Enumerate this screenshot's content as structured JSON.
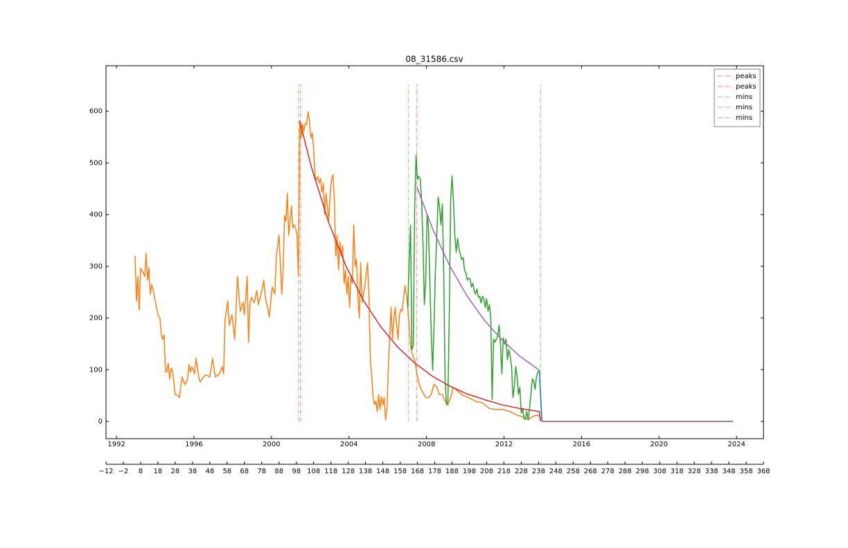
{
  "chart_data": {
    "type": "line",
    "title": "08_31586.csv",
    "xlim": [
      -12,
      368
    ],
    "xticks": [
      {
        "value": -12,
        "label": "−12"
      },
      {
        "value": -2,
        "label": "−2"
      },
      8,
      18,
      28,
      38,
      48,
      58,
      68,
      78,
      88,
      98,
      108,
      118,
      128,
      138,
      148,
      158,
      168,
      178,
      188,
      198,
      208,
      218,
      228,
      238,
      248,
      258,
      268,
      278,
      288,
      298,
      308,
      318,
      328,
      338,
      348,
      358,
      368
    ],
    "x2lim": [
      1991.46,
      2025.39
    ],
    "x2ticks": [
      1992,
      1996,
      2000,
      2004,
      2008,
      2012,
      2016,
      2020,
      2024
    ],
    "ylim": [
      -33.5,
      688
    ],
    "yticks": [
      0,
      100,
      200,
      300,
      400,
      500,
      600
    ],
    "series": [
      {
        "color": "#1f77b4",
        "x": [
          238.4,
          240.0
        ],
        "values": [
          99,
          0
        ]
      },
      {
        "color": "#ff7f0e",
        "x": [
          4.8,
          5.6,
          6.4,
          7.2,
          8.0,
          9.6,
          10.4,
          11.2,
          12.0,
          12.8,
          13.6,
          14.4,
          15.2,
          16.8,
          18.4,
          19.2,
          20.0,
          20.8,
          21.6,
          22.4,
          23.2,
          24.0,
          24.8,
          25.6,
          26.4,
          28.0,
          29.6,
          30.4,
          32.0,
          33.6,
          35.2,
          36.0,
          36.8,
          37.6,
          39.2,
          40.0,
          40.8,
          41.6,
          42.4,
          44.0,
          45.6,
          48.0,
          49.6,
          51.2,
          53.6,
          55.2,
          56.0,
          56.8,
          58.4,
          59.2,
          60.8,
          62.4,
          64.0,
          65.6,
          67.2,
          68.0,
          69.6,
          70.4,
          71.2,
          72.0,
          73.6,
          75.2,
          76.0,
          77.6,
          79.2,
          80.0,
          82.4,
          84.0,
          85.6,
          86.4,
          88.0,
          89.6,
          90.4,
          91.2,
          92.0,
          92.8,
          93.6,
          94.4,
          95.2,
          96.0,
          96.8,
          97.6,
          98.4,
          99.2,
          100.0,
          100.8,
          101.6,
          102.4,
          103.2,
          104.0,
          104.8,
          105.6,
          106.4,
          107.2,
          108.0,
          108.8,
          109.6,
          110.4,
          111.2,
          112.0,
          112.8,
          113.6,
          114.4,
          115.2,
          116.0,
          116.8,
          117.6,
          118.4,
          119.2,
          120.0,
          120.8,
          121.6,
          122.4,
          123.2,
          124.0,
          124.8,
          125.6,
          126.4,
          127.2,
          128.0,
          128.8,
          129.6,
          130.4,
          131.2,
          132.0,
          132.8,
          133.6,
          134.4,
          135.2,
          136.0,
          136.8,
          137.6,
          138.4,
          139.2,
          140.0,
          140.8,
          141.6,
          142.4,
          143.2,
          144.0,
          144.8,
          145.6,
          146.4,
          147.2,
          148.0,
          148.8,
          149.6,
          150.4,
          151.2,
          152.0,
          152.8,
          153.6,
          154.4,
          155.2,
          156.0,
          156.8,
          157.6,
          158.4,
          159.2,
          160.0,
          160.8,
          161.6,
          162.4,
          163.2,
          164.0,
          164.8,
          166.4,
          168.0,
          169.6,
          171.2,
          172.8,
          174.4,
          176.0,
          177.6,
          179.2,
          180.8,
          182.4,
          184.0,
          185.6,
          187.2,
          188.8,
          191.2,
          193.6,
          197.6,
          201.6,
          205.6,
          209.6,
          212.8,
          217.6,
          221.6,
          225.6,
          229.6,
          232.0,
          234.4,
          236.8,
          238.4,
          239.2
        ],
        "values": [
          320,
          233,
          280,
          215,
          296,
          287,
          280,
          325,
          273,
          297,
          246,
          264,
          256,
          226,
          202,
          200,
          166,
          159,
          167,
          96,
          96,
          112,
          82,
          103,
          99,
          52,
          50,
          46,
          86,
          71,
          82,
          110,
          96,
          106,
          92,
          122,
          106,
          86,
          76,
          84,
          90,
          86,
          122,
          86,
          92,
          106,
          92,
          196,
          233,
          186,
          206,
          159,
          280,
          213,
          230,
          206,
          280,
          153,
          226,
          240,
          229,
          253,
          226,
          246,
          273,
          242,
          202,
          260,
          246,
          317,
          360,
          246,
          297,
          398,
          387,
          441,
          360,
          387,
          417,
          374,
          380,
          374,
          360,
          280,
          581,
          548,
          575,
          561,
          577,
          575,
          599,
          581,
          548,
          558,
          528,
          474,
          467,
          474,
          461,
          470,
          443,
          461,
          400,
          441,
          414,
          390,
          441,
          470,
          477,
          427,
          320,
          360,
          293,
          347,
          320,
          340,
          267,
          293,
          246,
          280,
          220,
          280,
          267,
          380,
          300,
          313,
          240,
          200,
          307,
          230,
          246,
          260,
          287,
          307,
          240,
          119,
          86,
          46,
          32,
          39,
          19,
          52,
          23,
          48,
          32,
          46,
          3,
          25,
          106,
          166,
          220,
          159,
          200,
          220,
          186,
          159,
          206,
          217,
          213,
          240,
          262,
          246,
          220,
          186,
          146,
          133,
          119,
          86,
          66,
          55,
          46,
          46,
          52,
          72,
          66,
          52,
          52,
          39,
          32,
          46,
          66,
          59,
          52,
          46,
          39,
          36,
          25,
          23,
          23,
          19,
          12,
          8,
          3,
          9,
          12,
          11,
          0
        ]
      },
      {
        "color": "#2ca02c",
        "x": [
          162.4,
          163.2,
          164.0,
          164.8,
          165.6,
          166.4,
          167.2,
          168.0,
          168.8,
          169.6,
          170.4,
          171.2,
          172.0,
          172.8,
          173.6,
          174.4,
          175.2,
          176.0,
          176.8,
          177.6,
          178.4,
          179.2,
          180.0,
          180.8,
          181.6,
          182.4,
          183.2,
          184.0,
          184.8,
          185.6,
          186.4,
          187.2,
          188.0,
          188.8,
          189.6,
          190.4,
          191.2,
          192.0,
          192.8,
          193.6,
          194.4,
          195.2,
          196.0,
          196.8,
          197.6,
          198.4,
          199.2,
          200.0,
          200.8,
          201.6,
          202.4,
          203.2,
          204.0,
          204.8,
          205.6,
          206.4,
          207.2,
          208.0,
          208.8,
          209.6,
          210.4,
          211.2,
          212.0,
          212.8,
          213.6,
          214.4,
          215.2,
          216.0,
          216.8,
          217.6,
          218.4,
          219.2,
          220.0,
          220.8,
          221.6,
          222.4,
          223.2,
          224.0,
          224.8,
          225.6,
          226.4,
          227.2,
          228.0,
          228.8,
          229.6,
          230.4,
          231.2,
          232.0,
          232.8,
          233.6,
          234.4,
          235.2,
          236.0,
          236.8,
          237.6,
          238.4
        ],
        "values": [
          220,
          307,
          380,
          139,
          146,
          414,
          515,
          468,
          474,
          470,
          427,
          347,
          226,
          273,
          400,
          374,
          267,
          166,
          99,
          186,
          293,
          360,
          434,
          414,
          380,
          421,
          287,
          79,
          32,
          39,
          206,
          427,
          475,
          427,
          360,
          327,
          354,
          334,
          323,
          313,
          317,
          293,
          287,
          273,
          277,
          276,
          260,
          267,
          253,
          246,
          256,
          240,
          242,
          229,
          242,
          237,
          220,
          237,
          213,
          226,
          200,
          42,
          159,
          153,
          159,
          166,
          186,
          149,
          92,
          162,
          149,
          159,
          119,
          139,
          126,
          106,
          46,
          66,
          106,
          86,
          52,
          66,
          16,
          25,
          5,
          4,
          19,
          3,
          25,
          52,
          82,
          79,
          62,
          86,
          95,
          99
        ]
      },
      {
        "color": "#d62728",
        "x": [
          100.0,
          106.8,
          116.8,
          126.8,
          136.8,
          146.8,
          156.8,
          166.8,
          176.8,
          186.8,
          196.8,
          206.8,
          216.8,
          226.8,
          238.4,
          239.2
        ],
        "values": [
          581,
          491,
          384,
          300,
          234,
          183,
          143,
          112,
          87,
          68,
          53,
          42,
          32,
          25,
          19,
          0
        ]
      },
      {
        "color": "#9467bd",
        "x": [
          167.6,
          176.8,
          186.8,
          196.8,
          206.8,
          216.8,
          226.8,
          238.4
        ],
        "values": [
          454,
          372,
          300,
          242,
          195,
          158,
          127,
          99
        ]
      },
      {
        "color": "#8c564b",
        "x": [
          240.0,
          350.4
        ],
        "values": [
          0,
          0
        ]
      }
    ],
    "vline_span": [
      0,
      652
    ],
    "vlines": [
      {
        "name": "peaks",
        "color": "#f0a9a9",
        "x": 100.4
      },
      {
        "name": "peaks",
        "color": "#f0a9a9",
        "x": 167.6
      },
      {
        "name": "mins",
        "color": "#abd9ab",
        "x": 99.2
      },
      {
        "name": "mins",
        "color": "#abd9ab",
        "x": 162.8
      },
      {
        "name": "mins",
        "color": "#abd9ab",
        "x": 239.2
      }
    ],
    "legend": "upper right"
  }
}
